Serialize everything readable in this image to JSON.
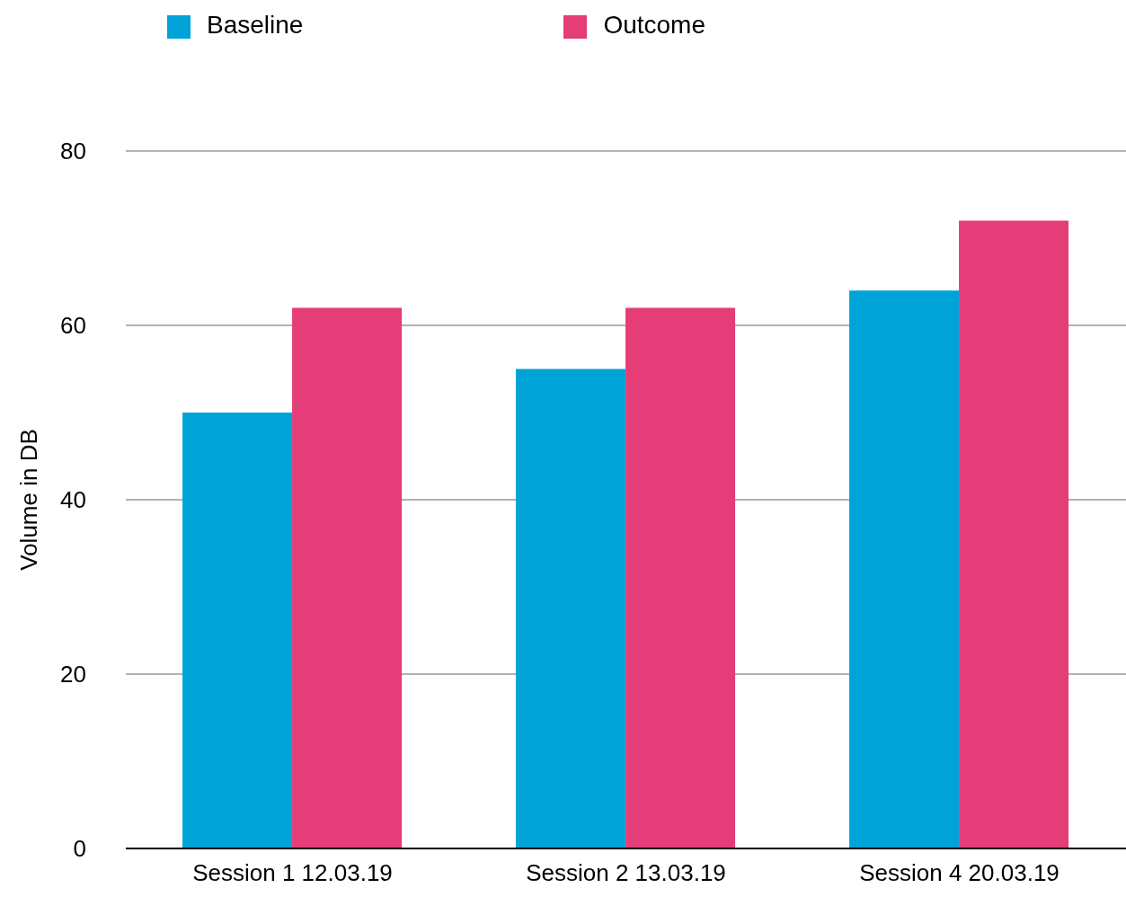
{
  "chart_data": {
    "type": "bar",
    "ylabel": "Volume in DB",
    "categories": [
      "Session 1 12.03.19",
      "Session 2 13.03.19",
      "Session 4 20.03.19"
    ],
    "series": [
      {
        "name": "Baseline",
        "color": "#00a3d7",
        "values": [
          50,
          55,
          64
        ]
      },
      {
        "name": "Outcome",
        "color": "#e43d78",
        "values": [
          62,
          62,
          72
        ]
      }
    ],
    "ylim": [
      0,
      80
    ],
    "yticks": [
      0,
      20,
      40,
      60,
      80
    ],
    "grid": "y",
    "legend": "top"
  }
}
